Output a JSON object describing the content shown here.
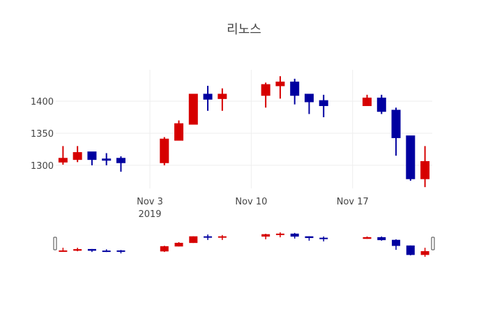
{
  "chart_data": {
    "type": "candlestick",
    "title": "리노스",
    "xlabel": "",
    "ylabel": "",
    "ylim": [
      1264,
      1449
    ],
    "grid": true,
    "legend": "none",
    "increasing_color": "#d60000",
    "decreasing_color": "#0000a0",
    "x_ticks": [
      {
        "date": "2019-11-03",
        "label": "Nov 3",
        "sublabel": "2019"
      },
      {
        "date": "2019-11-10",
        "label": "Nov 10",
        "sublabel": ""
      },
      {
        "date": "2019-11-17",
        "label": "Nov 17",
        "sublabel": ""
      }
    ],
    "y_ticks": [
      1300,
      1350,
      1400
    ],
    "x_range": [
      "2019-10-27T12:00",
      "2019-11-22T12:00"
    ],
    "categories": [
      "2019-10-28",
      "2019-10-29",
      "2019-10-30",
      "2019-10-31",
      "2019-11-01",
      "2019-11-04",
      "2019-11-05",
      "2019-11-06",
      "2019-11-07",
      "2019-11-08",
      "2019-11-11",
      "2019-11-12",
      "2019-11-13",
      "2019-11-14",
      "2019-11-15",
      "2019-11-18",
      "2019-11-19",
      "2019-11-20",
      "2019-11-21",
      "2019-11-22"
    ],
    "series": [
      {
        "name": "open",
        "values": [
          1305,
          1309,
          1321,
          1310,
          1311,
          1304,
          1339,
          1364,
          1411,
          1404,
          1409,
          1424,
          1430,
          1411,
          1401,
          1393,
          1405,
          1386,
          1346,
          1279
        ]
      },
      {
        "name": "high",
        "values": [
          1330,
          1330,
          1321,
          1319,
          1314,
          1344,
          1370,
          1411,
          1424,
          1420,
          1429,
          1439,
          1435,
          1411,
          1410,
          1410,
          1410,
          1390,
          1346,
          1330
        ]
      },
      {
        "name": "low",
        "values": [
          1301,
          1305,
          1300,
          1300,
          1290,
          1300,
          1339,
          1364,
          1385,
          1385,
          1390,
          1404,
          1395,
          1380,
          1375,
          1393,
          1380,
          1315,
          1276,
          1266
        ]
      },
      {
        "name": "close",
        "values": [
          1311,
          1320,
          1309,
          1309,
          1304,
          1341,
          1365,
          1411,
          1403,
          1411,
          1426,
          1430,
          1409,
          1399,
          1393,
          1405,
          1384,
          1343,
          1279,
          1306
        ]
      }
    ],
    "rangeslider": {
      "visible": true
    }
  }
}
